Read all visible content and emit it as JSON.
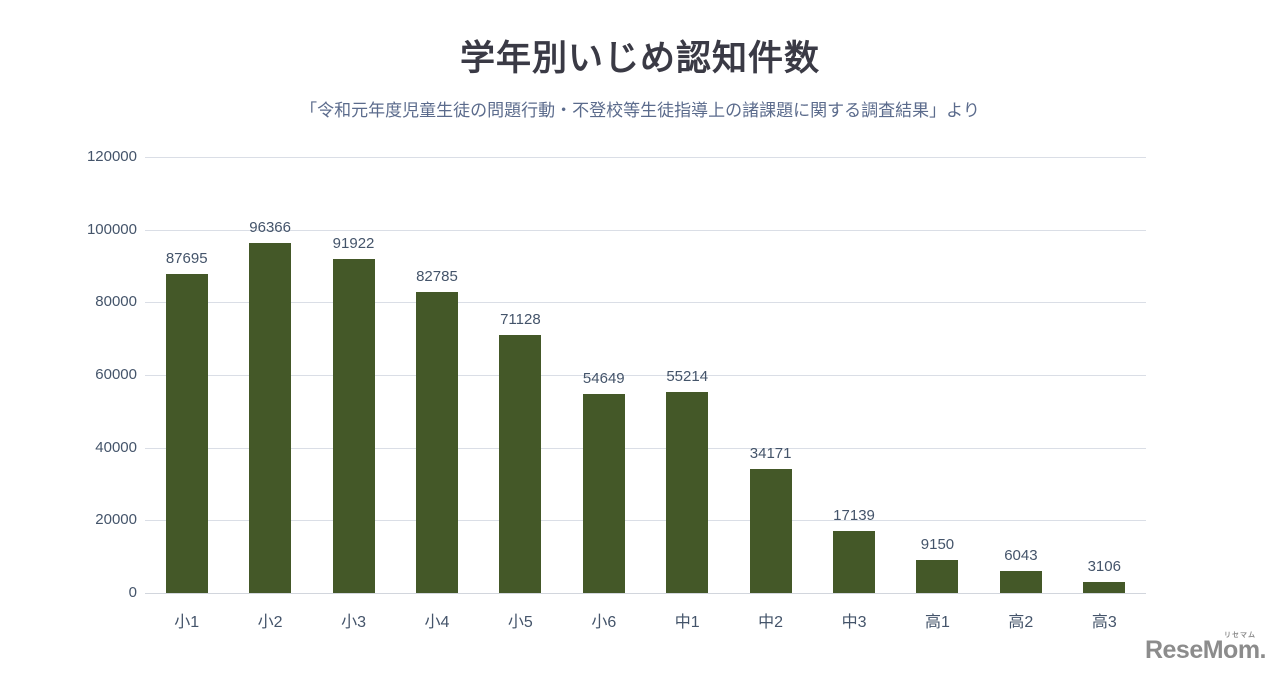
{
  "page": {
    "background_color": "#ffffff"
  },
  "header": {
    "title": "学年別いじめ認知件数",
    "subtitle": "「令和元年度児童生徒の問題行動・不登校等生徒指導上の諸課題に関する調査結果」より",
    "title_color": "#3a3a45",
    "subtitle_color": "#5b6b8c"
  },
  "chart_data": {
    "type": "bar",
    "title": "学年別いじめ認知件数",
    "subtitle": "「令和元年度児童生徒の問題行動・不登校等生徒指導上の諸課題に関する調査結果」より",
    "categories": [
      "小1",
      "小2",
      "小3",
      "小4",
      "小5",
      "小6",
      "中1",
      "中2",
      "中3",
      "高1",
      "高2",
      "高3"
    ],
    "values": [
      87695,
      96366,
      91922,
      82785,
      71128,
      54649,
      55214,
      34171,
      17139,
      9150,
      6043,
      3106
    ],
    "xlabel": "",
    "ylabel": "",
    "ylim": [
      0,
      120000
    ],
    "yticks": [
      0,
      20000,
      40000,
      60000,
      80000,
      100000,
      120000
    ],
    "grid": true,
    "legend": "none",
    "data_labels": true,
    "bar_color": "#445828",
    "label_color": "#44546a",
    "gridline_color": "#dadee6"
  },
  "branding": {
    "logo_text": "ReseMom",
    "logo_suffix": ".",
    "logo_ruby": "リセマム",
    "logo_color": "#8c8c8c"
  }
}
